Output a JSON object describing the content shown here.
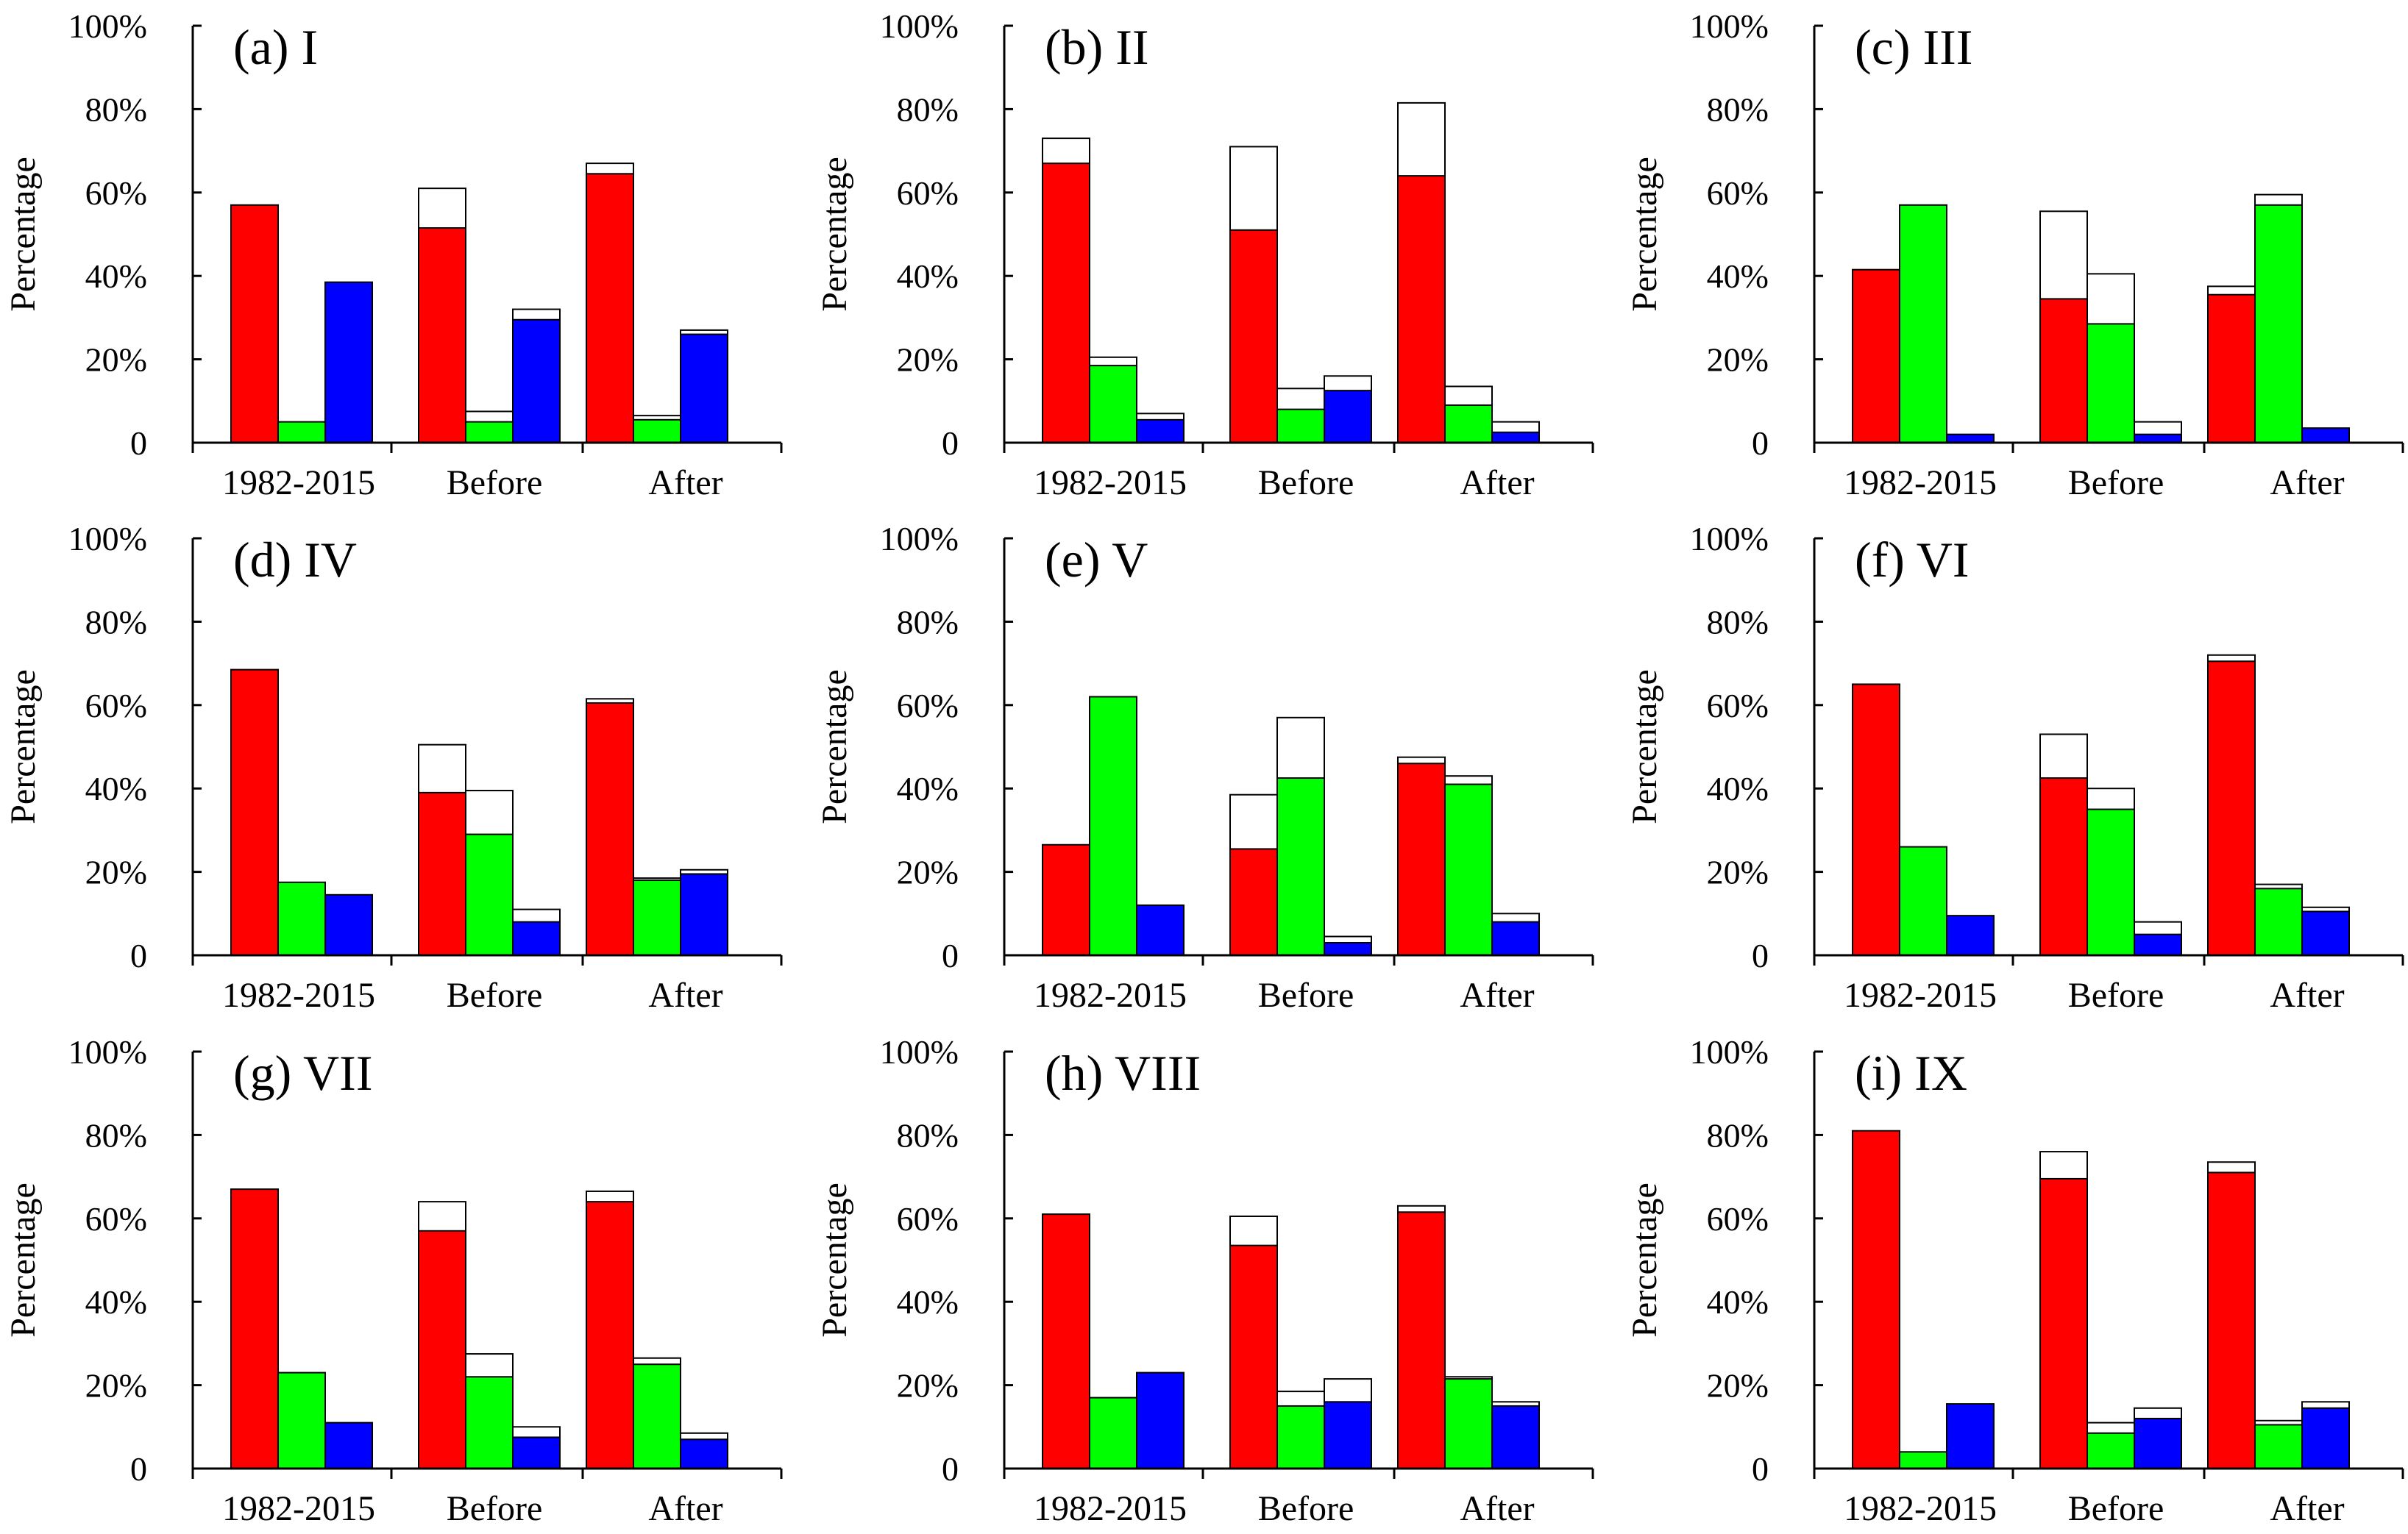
{
  "figure": {
    "ylabel": "Percentage",
    "categories": [
      "1982-2015",
      "Before",
      "After"
    ],
    "yticks": [
      "0",
      "20%",
      "40%",
      "60%",
      "80%",
      "100%"
    ],
    "colors": {
      "s1": "#ff0000",
      "s2": "#00ff00",
      "s3": "#0000ff",
      "ext": "#ffffff",
      "axis": "#000000"
    }
  },
  "chart_data": [
    {
      "type": "bar",
      "title": "(a) I",
      "ylabel": "Percentage",
      "ylim": [
        0,
        100
      ],
      "categories": [
        "1982-2015",
        "Before",
        "After"
      ],
      "series": [
        {
          "name": "red",
          "color": "#ff0000",
          "values": [
            57,
            51.5,
            64.5
          ],
          "totals": [
            57,
            61,
            67
          ]
        },
        {
          "name": "green",
          "color": "#00ff00",
          "values": [
            5,
            5,
            5.5
          ],
          "totals": [
            5,
            7.5,
            6.5
          ]
        },
        {
          "name": "blue",
          "color": "#0000ff",
          "values": [
            38.5,
            29.5,
            26
          ],
          "totals": [
            38.5,
            32,
            27
          ]
        }
      ]
    },
    {
      "type": "bar",
      "title": "(b) II",
      "ylabel": "Percentage",
      "ylim": [
        0,
        100
      ],
      "categories": [
        "1982-2015",
        "Before",
        "After"
      ],
      "series": [
        {
          "name": "red",
          "color": "#ff0000",
          "values": [
            67,
            51,
            64
          ],
          "totals": [
            73,
            71,
            81.5
          ]
        },
        {
          "name": "green",
          "color": "#00ff00",
          "values": [
            18.5,
            8,
            9
          ],
          "totals": [
            20.5,
            13,
            13.5
          ]
        },
        {
          "name": "blue",
          "color": "#0000ff",
          "values": [
            5.5,
            12.5,
            2.5
          ],
          "totals": [
            7,
            16,
            5
          ]
        }
      ]
    },
    {
      "type": "bar",
      "title": "(c) III",
      "ylabel": "Percentage",
      "ylim": [
        0,
        100
      ],
      "categories": [
        "1982-2015",
        "Before",
        "After"
      ],
      "series": [
        {
          "name": "red",
          "color": "#ff0000",
          "values": [
            41.5,
            34.5,
            35.5
          ],
          "totals": [
            41.5,
            55.5,
            37.5
          ]
        },
        {
          "name": "green",
          "color": "#00ff00",
          "values": [
            57,
            28.5,
            57
          ],
          "totals": [
            57,
            40.5,
            59.5
          ]
        },
        {
          "name": "blue",
          "color": "#0000ff",
          "values": [
            2,
            2,
            3.5
          ],
          "totals": [
            2,
            5,
            3.5
          ]
        }
      ]
    },
    {
      "type": "bar",
      "title": "(d) IV",
      "ylabel": "Percentage",
      "ylim": [
        0,
        100
      ],
      "categories": [
        "1982-2015",
        "Before",
        "After"
      ],
      "series": [
        {
          "name": "red",
          "color": "#ff0000",
          "values": [
            68.5,
            39,
            60.5
          ],
          "totals": [
            68.5,
            50.5,
            61.5
          ]
        },
        {
          "name": "green",
          "color": "#00ff00",
          "values": [
            17.5,
            29,
            18
          ],
          "totals": [
            17.5,
            39.5,
            18.5
          ]
        },
        {
          "name": "blue",
          "color": "#0000ff",
          "values": [
            14.5,
            8,
            19.5
          ],
          "totals": [
            14.5,
            11,
            20.5
          ]
        }
      ]
    },
    {
      "type": "bar",
      "title": "(e) V",
      "ylabel": "Percentage",
      "ylim": [
        0,
        100
      ],
      "categories": [
        "1982-2015",
        "Before",
        "After"
      ],
      "series": [
        {
          "name": "red",
          "color": "#ff0000",
          "values": [
            26.5,
            25.5,
            46
          ],
          "totals": [
            26.5,
            38.5,
            47.5
          ]
        },
        {
          "name": "green",
          "color": "#00ff00",
          "values": [
            62,
            42.5,
            41
          ],
          "totals": [
            62,
            57,
            43
          ]
        },
        {
          "name": "blue",
          "color": "#0000ff",
          "values": [
            12,
            3,
            8
          ],
          "totals": [
            12,
            4.5,
            10
          ]
        }
      ]
    },
    {
      "type": "bar",
      "title": "(f) VI",
      "ylabel": "Percentage",
      "ylim": [
        0,
        100
      ],
      "categories": [
        "1982-2015",
        "Before",
        "After"
      ],
      "series": [
        {
          "name": "red",
          "color": "#ff0000",
          "values": [
            65,
            42.5,
            70.5
          ],
          "totals": [
            65,
            53,
            72
          ]
        },
        {
          "name": "green",
          "color": "#00ff00",
          "values": [
            26,
            35,
            16
          ],
          "totals": [
            26,
            40,
            17
          ]
        },
        {
          "name": "blue",
          "color": "#0000ff",
          "values": [
            9.5,
            5,
            10.5
          ],
          "totals": [
            9.5,
            8,
            11.5
          ]
        }
      ]
    },
    {
      "type": "bar",
      "title": "(g) VII",
      "ylabel": "Percentage",
      "ylim": [
        0,
        100
      ],
      "categories": [
        "1982-2015",
        "Before",
        "After"
      ],
      "series": [
        {
          "name": "red",
          "color": "#ff0000",
          "values": [
            67,
            57,
            64
          ],
          "totals": [
            67,
            64,
            66.5
          ]
        },
        {
          "name": "green",
          "color": "#00ff00",
          "values": [
            23,
            22,
            25
          ],
          "totals": [
            23,
            27.5,
            26.5
          ]
        },
        {
          "name": "blue",
          "color": "#0000ff",
          "values": [
            11,
            7.5,
            7
          ],
          "totals": [
            11,
            10,
            8.5
          ]
        }
      ]
    },
    {
      "type": "bar",
      "title": "(h) VIII",
      "ylabel": "Percentage",
      "ylim": [
        0,
        100
      ],
      "categories": [
        "1982-2015",
        "Before",
        "After"
      ],
      "series": [
        {
          "name": "red",
          "color": "#ff0000",
          "values": [
            61,
            53.5,
            61.5
          ],
          "totals": [
            61,
            60.5,
            63
          ]
        },
        {
          "name": "green",
          "color": "#00ff00",
          "values": [
            17,
            15,
            21.5
          ],
          "totals": [
            17,
            18.5,
            22
          ]
        },
        {
          "name": "blue",
          "color": "#0000ff",
          "values": [
            23,
            16,
            15
          ],
          "totals": [
            23,
            21.5,
            16
          ]
        }
      ]
    },
    {
      "type": "bar",
      "title": "(i) IX",
      "ylabel": "Percentage",
      "ylim": [
        0,
        100
      ],
      "categories": [
        "1982-2015",
        "Before",
        "After"
      ],
      "series": [
        {
          "name": "red",
          "color": "#ff0000",
          "values": [
            81,
            69.5,
            71
          ],
          "totals": [
            81,
            76,
            73.5
          ]
        },
        {
          "name": "green",
          "color": "#00ff00",
          "values": [
            4,
            8.5,
            10.5
          ],
          "totals": [
            4,
            11,
            11.5
          ]
        },
        {
          "name": "blue",
          "color": "#0000ff",
          "values": [
            15.5,
            12,
            14.5
          ],
          "totals": [
            15.5,
            14.5,
            16
          ]
        }
      ]
    }
  ]
}
